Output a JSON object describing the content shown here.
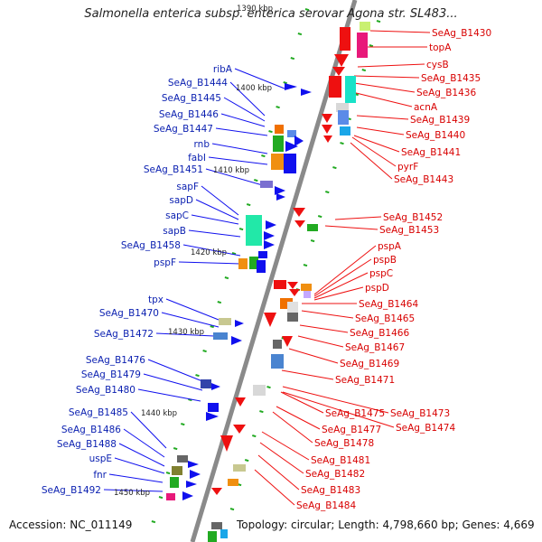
{
  "title": "Salmonella enterica subsp. enterica serovar Agona str. SL483...",
  "footer": {
    "accession": "Accession: NC_011149",
    "summary": "Topology: circular; Length: 4,798,660 bp; Genes: 4,669"
  },
  "colors": {
    "backbone": "#8a8a8a",
    "left_strand": "#1010ee",
    "right_strand": "#ee1010",
    "left_label": "#0a1fb0",
    "right_label": "#d80000",
    "tick": "#22aa22"
  },
  "scale_labels": [
    "1390 kbp",
    "1400 kbp",
    "1410 kbp",
    "1420 kbp",
    "1430 kbp",
    "1440 kbp",
    "1450 kbp"
  ],
  "left_genes": [
    "ribA",
    "SeAg_B1444",
    "SeAg_B1445",
    "SeAg_B1446",
    "SeAg_B1447",
    "rnb",
    "fabI",
    "SeAg_B1451",
    "sapF",
    "sapD",
    "sapC",
    "sapB",
    "SeAg_B1458",
    "pspF",
    "tpx",
    "SeAg_B1470",
    "SeAg_B1472",
    "SeAg_B1476",
    "SeAg_B1479",
    "SeAg_B1480",
    "SeAg_B1485",
    "SeAg_B1486",
    "SeAg_B1488",
    "uspE",
    "fnr",
    "SeAg_B1492"
  ],
  "right_genes": [
    "SeAg_B1430",
    "topA",
    "cysB",
    "SeAg_B1435",
    "SeAg_B1436",
    "acnA",
    "SeAg_B1439",
    "SeAg_B1440",
    "SeAg_B1441",
    "pyrF",
    "SeAg_B1443",
    "SeAg_B1452",
    "SeAg_B1453",
    "pspA",
    "pspB",
    "pspC",
    "pspD",
    "SeAg_B1464",
    "SeAg_B1465",
    "SeAg_B1466",
    "SeAg_B1467",
    "SeAg_B1469",
    "SeAg_B1471",
    "SeAg_B1473",
    "SeAg_B1474",
    "SeAg_B1475",
    "SeAg_B1477",
    "SeAg_B1478",
    "SeAg_B1481",
    "SeAg_B1482",
    "SeAg_B1483",
    "SeAg_B1484"
  ]
}
